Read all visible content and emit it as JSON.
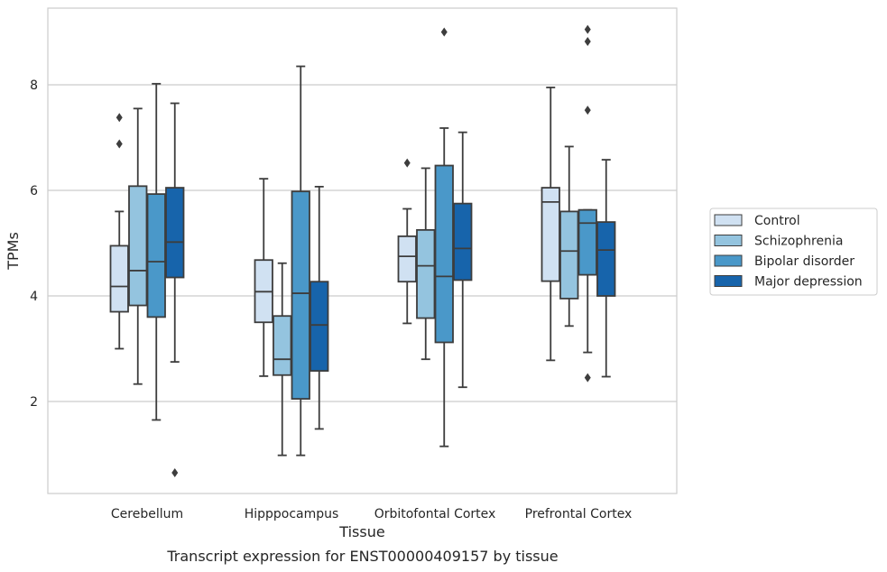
{
  "chart_data": {
    "type": "box",
    "xlabel": "Tissue",
    "ylabel": "TPMs",
    "caption": "Transcript expression for ENST00000409157 by tissue",
    "categories": [
      "Cerebellum",
      "Hipppocampus",
      "Orbitofontal Cortex",
      "Prefrontal Cortex"
    ],
    "ylim": [
      0.3,
      9.5
    ],
    "yticks": [
      2,
      4,
      6,
      8
    ],
    "grid": true,
    "legend_position": "right",
    "series": [
      {
        "name": "Control",
        "color": "#d0e1f2",
        "boxes": [
          {
            "whislo": 3.0,
            "q1": 3.7,
            "med": 4.18,
            "q3": 4.95,
            "whishi": 5.6,
            "fliers": [
              6.88,
              7.38
            ]
          },
          {
            "whislo": 2.48,
            "q1": 3.5,
            "med": 4.08,
            "q3": 4.68,
            "whishi": 6.22,
            "fliers": []
          },
          {
            "whislo": 3.48,
            "q1": 4.27,
            "med": 4.75,
            "q3": 5.13,
            "whishi": 5.65,
            "fliers": [
              6.52
            ]
          },
          {
            "whislo": 2.78,
            "q1": 4.28,
            "med": 5.78,
            "q3": 6.05,
            "whishi": 7.95,
            "fliers": []
          }
        ]
      },
      {
        "name": "Schizophrenia",
        "color": "#94c4df",
        "boxes": [
          {
            "whislo": 2.33,
            "q1": 3.82,
            "med": 4.48,
            "q3": 6.08,
            "whishi": 7.55,
            "fliers": []
          },
          {
            "whislo": 0.98,
            "q1": 2.5,
            "med": 2.8,
            "q3": 3.62,
            "whishi": 4.62,
            "fliers": []
          },
          {
            "whislo": 2.8,
            "q1": 3.58,
            "med": 4.57,
            "q3": 5.25,
            "whishi": 6.42,
            "fliers": []
          },
          {
            "whislo": 3.43,
            "q1": 3.95,
            "med": 4.85,
            "q3": 5.6,
            "whishi": 6.83,
            "fliers": []
          }
        ]
      },
      {
        "name": "Bipolar disorder",
        "color": "#4a98c9",
        "boxes": [
          {
            "whislo": 1.65,
            "q1": 3.6,
            "med": 4.65,
            "q3": 5.93,
            "whishi": 8.02,
            "fliers": []
          },
          {
            "whislo": 0.98,
            "q1": 2.05,
            "med": 4.05,
            "q3": 5.98,
            "whishi": 8.35,
            "fliers": []
          },
          {
            "whislo": 1.15,
            "q1": 3.12,
            "med": 4.37,
            "q3": 6.47,
            "whishi": 7.18,
            "fliers": [
              9.0
            ]
          },
          {
            "whislo": 2.93,
            "q1": 4.4,
            "med": 5.38,
            "q3": 5.63,
            "whishi": 5.63,
            "fliers": [
              7.52,
              8.82,
              9.05,
              2.45
            ]
          }
        ]
      },
      {
        "name": "Major depression",
        "color": "#1764ab",
        "boxes": [
          {
            "whislo": 2.75,
            "q1": 4.35,
            "med": 5.02,
            "q3": 6.05,
            "whishi": 7.65,
            "fliers": [
              0.65
            ]
          },
          {
            "whislo": 1.48,
            "q1": 2.58,
            "med": 3.45,
            "q3": 4.27,
            "whishi": 6.07,
            "fliers": []
          },
          {
            "whislo": 2.27,
            "q1": 4.3,
            "med": 4.9,
            "q3": 5.75,
            "whishi": 7.1,
            "fliers": []
          },
          {
            "whislo": 2.47,
            "q1": 4.0,
            "med": 4.87,
            "q3": 5.4,
            "whishi": 6.58,
            "fliers": []
          }
        ]
      }
    ]
  }
}
